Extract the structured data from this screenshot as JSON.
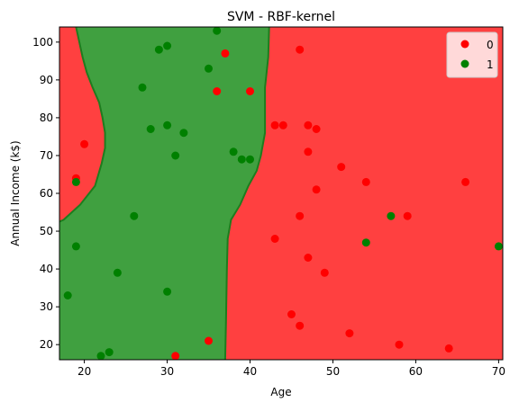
{
  "chart_data": {
    "type": "scatter",
    "title": "SVM - RBF-kernel",
    "xlabel": "Age",
    "ylabel": "Annual Income (k$)",
    "xlim": [
      17,
      70.5
    ],
    "ylim": [
      16,
      104
    ],
    "xticks": [
      20,
      30,
      40,
      50,
      60,
      70
    ],
    "yticks": [
      20,
      30,
      40,
      50,
      60,
      70,
      80,
      90,
      100
    ],
    "grid": false,
    "legend_position": "top-right",
    "colors": {
      "class0": "#ff0000",
      "class1": "#008000",
      "region0": "#ff4040",
      "region1": "#40a040",
      "boundary": "#1e7d1e"
    },
    "decision_regions": {
      "class1_boundary_right": [
        [
          42.3,
          104
        ],
        [
          42.2,
          96
        ],
        [
          41.8,
          88
        ],
        [
          41.8,
          76
        ],
        [
          41.3,
          70
        ],
        [
          40.8,
          66
        ],
        [
          39.8,
          62
        ],
        [
          38.8,
          57
        ],
        [
          37.7,
          53
        ],
        [
          37.3,
          48
        ],
        [
          37.2,
          40
        ],
        [
          37.1,
          26
        ],
        [
          37.0,
          16
        ]
      ],
      "class1_boundary_left": [
        [
          19.0,
          104
        ],
        [
          19.8,
          96
        ],
        [
          20.3,
          92
        ],
        [
          21.0,
          88
        ],
        [
          21.8,
          84
        ],
        [
          22.2,
          80
        ],
        [
          22.5,
          76
        ],
        [
          22.5,
          72
        ],
        [
          22.1,
          68
        ],
        [
          21.3,
          62
        ],
        [
          19.5,
          57
        ],
        [
          17.5,
          53
        ],
        [
          17.0,
          52.5
        ]
      ],
      "class1_boundary_bottom_left": [
        [
          17.0,
          16
        ]
      ]
    },
    "series": [
      {
        "name": "0",
        "color": "#ff0000",
        "points": [
          [
            19,
            64
          ],
          [
            20,
            73
          ],
          [
            31,
            17
          ],
          [
            35,
            21
          ],
          [
            36,
            87
          ],
          [
            37,
            97
          ],
          [
            40,
            87
          ],
          [
            43,
            48
          ],
          [
            43,
            78
          ],
          [
            44,
            78
          ],
          [
            45,
            28
          ],
          [
            46,
            25
          ],
          [
            46,
            54
          ],
          [
            46,
            98
          ],
          [
            47,
            71
          ],
          [
            47,
            78
          ],
          [
            47,
            43
          ],
          [
            48,
            77
          ],
          [
            48,
            61
          ],
          [
            49,
            39
          ],
          [
            51,
            67
          ],
          [
            52,
            23
          ],
          [
            54,
            63
          ],
          [
            58,
            20
          ],
          [
            59,
            54
          ],
          [
            64,
            19
          ],
          [
            66,
            63
          ]
        ]
      },
      {
        "name": "1",
        "color": "#008000",
        "points": [
          [
            18,
            33
          ],
          [
            19,
            46
          ],
          [
            19,
            63
          ],
          [
            22,
            17
          ],
          [
            23,
            18
          ],
          [
            24,
            39
          ],
          [
            26,
            54
          ],
          [
            27,
            88
          ],
          [
            28,
            77
          ],
          [
            29,
            98
          ],
          [
            30,
            99
          ],
          [
            30,
            78
          ],
          [
            30,
            34
          ],
          [
            31,
            70
          ],
          [
            32,
            76
          ],
          [
            35,
            93
          ],
          [
            36,
            103
          ],
          [
            38,
            71
          ],
          [
            39,
            69
          ],
          [
            40,
            69
          ],
          [
            54,
            47
          ],
          [
            57,
            54
          ],
          [
            70,
            46
          ]
        ]
      }
    ]
  }
}
